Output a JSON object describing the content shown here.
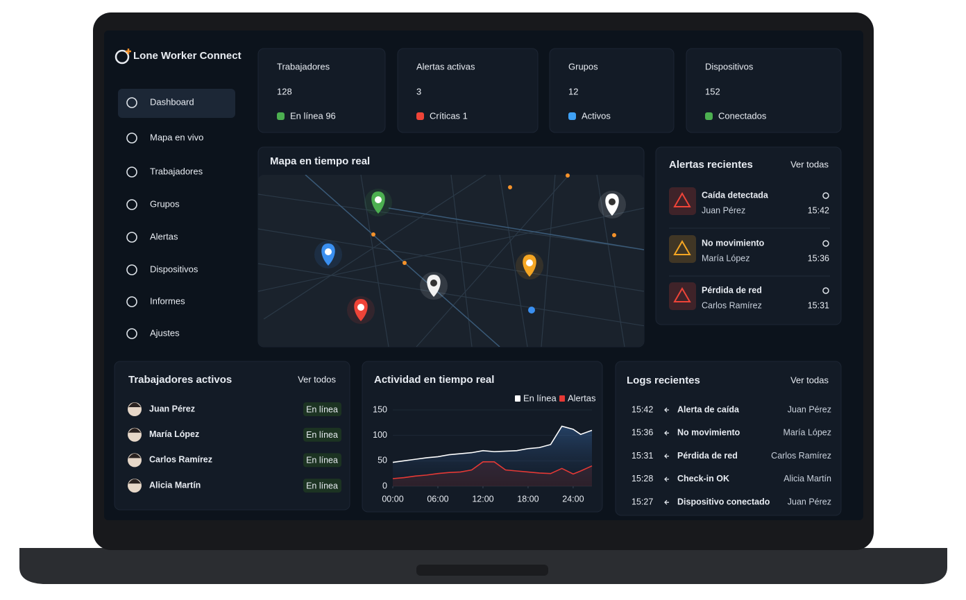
{
  "app": {
    "name": "Lone Worker Connect"
  },
  "nav": [
    "Dashboard",
    "Mapa en vivo",
    "Trabajadores",
    "Grupos",
    "Alertas",
    "Dispositivos",
    "Informes",
    "Ajustes"
  ],
  "stats": [
    {
      "label": "Trabajadores",
      "value": 128,
      "detail": "En línea 96"
    },
    {
      "label": "Alertas activas",
      "value": 3,
      "detail": "Críticas 1"
    },
    {
      "label": "Grupos",
      "value": 12,
      "detail": "Activos"
    },
    {
      "label": "Dispositivos",
      "value": 152,
      "detail": "Conectados"
    }
  ],
  "map": {
    "title": "Mapa en tiempo real"
  },
  "recent_alerts": {
    "title": "Alertas recientes",
    "link": "Ver todas",
    "items": [
      {
        "title": "Caída detectada",
        "worker": "Juan Pérez",
        "time": "15:42"
      },
      {
        "title": "No movimiento",
        "worker": "María López",
        "time": "15:36"
      },
      {
        "title": "Pérdida de red",
        "worker": "Carlos Ramírez",
        "time": "15:31"
      }
    ]
  },
  "active_workers": {
    "title": "Trabajadores activos",
    "link": "Ver todos",
    "items": [
      {
        "name": "Juan Pérez",
        "status": "En línea"
      },
      {
        "name": "María López",
        "status": "En línea"
      },
      {
        "name": "Carlos Ramírez",
        "status": "En línea"
      },
      {
        "name": "Alicia Martín",
        "status": "En línea"
      }
    ]
  },
  "activity_chart": {
    "type": "line",
    "title": "Actividad en tiempo real",
    "x": [
      0,
      1.5,
      3,
      4.5,
      6,
      7.5,
      9,
      10.5,
      12,
      13.5,
      15,
      16.5,
      18,
      19.5,
      21,
      22.5,
      24,
      25,
      26.5
    ],
    "xlim": [
      0,
      26.5
    ],
    "xticks": [
      {
        "value": 0,
        "label": "00:00"
      },
      {
        "value": 6,
        "label": "06:00"
      },
      {
        "value": 12,
        "label": "12:00"
      },
      {
        "value": 18,
        "label": "18:00"
      },
      {
        "value": 24,
        "label": "24:00"
      }
    ],
    "ylim": [
      0,
      150
    ],
    "yticks": [
      0,
      50,
      100,
      150
    ],
    "series": [
      {
        "name": "En línea",
        "color": "#ffffff",
        "values": [
          47,
          50,
          53,
          56,
          58,
          62,
          64,
          66,
          70,
          68,
          69,
          70,
          74,
          76,
          82,
          118,
          112,
          102,
          110
        ]
      },
      {
        "name": "Alertas",
        "color": "#e53935",
        "values": [
          15,
          17,
          20,
          22,
          25,
          27,
          28,
          32,
          48,
          48,
          32,
          30,
          28,
          26,
          25,
          35,
          24,
          30,
          40
        ]
      }
    ]
  },
  "logs": {
    "title": "Logs recientes",
    "link": "Ver todas",
    "items": [
      {
        "time": "15:42",
        "event": "Alerta de caída",
        "worker": "Juan Pérez"
      },
      {
        "time": "15:36",
        "event": "No movimiento",
        "worker": "María López"
      },
      {
        "time": "15:31",
        "event": "Pérdida de red",
        "worker": "Carlos Ramírez"
      },
      {
        "time": "15:28",
        "event": "Check-in OK",
        "worker": "Alicia Martín"
      },
      {
        "time": "15:27",
        "event": "Dispositivo conectado",
        "worker": "Juan Pérez"
      }
    ]
  }
}
